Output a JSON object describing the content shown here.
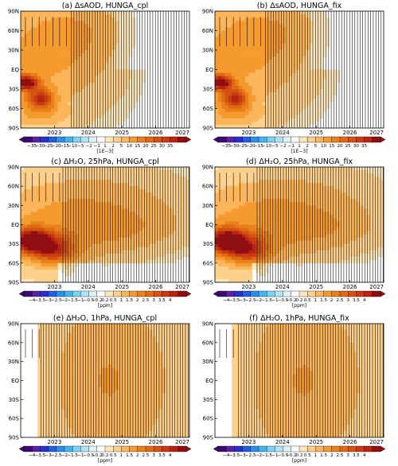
{
  "colors": {
    "levels": [
      "#3d0a73",
      "#5c1fa8",
      "#2a2fd0",
      "#1f5fe8",
      "#2b8fe6",
      "#46b4ec",
      "#80d1f0",
      "#b3e3f2",
      "#dff2f8",
      "#ffffff",
      "#fbe7bd",
      "#fdd08c",
      "#fbb55a",
      "#f59a2f",
      "#e9801a",
      "#e06a12",
      "#d2520f",
      "#c83a14",
      "#b8240f",
      "#8e0e12"
    ],
    "hatch": "#000000"
  },
  "colorbars": [
    {
      "ticks": [
        "−35",
        "−30",
        "−25",
        "−20",
        "−15",
        "−10",
        "−5",
        "−2",
        "−1",
        "1",
        "2",
        "5",
        "10",
        "15",
        "20",
        "25",
        "30",
        "35"
      ],
      "unit": "[1E−3]"
    },
    {
      "ticks": [
        "−4",
        "−3.5",
        "−3",
        "−2.5",
        "−2",
        "−1.5",
        "−1",
        "−0.5",
        "−0.2",
        "0.2",
        "0.5",
        "1",
        "1.5",
        "2",
        "2.5",
        "3",
        "3.5",
        "4"
      ],
      "unit": "[ppm]"
    }
  ],
  "chart_data": [
    {
      "type": "heatmap",
      "title": "(a) ΔsAOD, HUNGA_cpl",
      "variable": "sAOD anomaly",
      "scale": "1E−3",
      "x_ticks": [
        "2023",
        "2024",
        "2025",
        "2026",
        "2027"
      ],
      "y_ticks": [
        "90N",
        "60N",
        "30N",
        "EQ",
        "30S",
        "60S",
        "90S"
      ],
      "xlim": [
        2022.0,
        2027.0
      ],
      "ylim": [
        -90,
        90
      ],
      "maxima": [
        {
          "x": 2022.1,
          "y": -20,
          "value": 35
        },
        {
          "x": 2022.6,
          "y": -45,
          "value": 25
        }
      ],
      "hatching": "vertical lines over most of the domain, sparse in 2022 mid-latitudes"
    },
    {
      "type": "heatmap",
      "title": "(b) ΔsAOD, HUNGA_fix",
      "variable": "sAOD anomaly",
      "scale": "1E−3",
      "x_ticks": [
        "2023",
        "2024",
        "2025",
        "2026",
        "2027"
      ],
      "y_ticks": [
        "90N",
        "60N",
        "30N",
        "EQ",
        "30S",
        "60S",
        "90S"
      ],
      "xlim": [
        2022.0,
        2027.0
      ],
      "ylim": [
        -90,
        90
      ],
      "maxima": [
        {
          "x": 2022.1,
          "y": -20,
          "value": 35
        },
        {
          "x": 2022.6,
          "y": -45,
          "value": 25
        }
      ]
    },
    {
      "type": "heatmap",
      "title": "(c) ΔH₂O, 25hPa, HUNGA_cpl",
      "variable": "H2O anomaly at 25 hPa",
      "unit": "ppm",
      "x_ticks": [
        "2023",
        "2024",
        "2025",
        "2026",
        "2027"
      ],
      "y_ticks": [
        "90N",
        "60N",
        "30N",
        "EQ",
        "30S",
        "60S",
        "90S"
      ],
      "xlim": [
        2022.0,
        2027.0
      ],
      "ylim": [
        -90,
        90
      ],
      "maxima": [
        {
          "x": 2022.3,
          "y": -25,
          "value": 4
        }
      ]
    },
    {
      "type": "heatmap",
      "title": "(d) ΔH₂O, 25hPa, HUNGA_fix",
      "variable": "H2O anomaly at 25 hPa",
      "unit": "ppm",
      "x_ticks": [
        "2023",
        "2024",
        "2025",
        "2026",
        "2027"
      ],
      "y_ticks": [
        "90N",
        "60N",
        "30N",
        "EQ",
        "30S",
        "60S",
        "90S"
      ],
      "xlim": [
        2022.0,
        2027.0
      ],
      "ylim": [
        -90,
        90
      ],
      "maxima": [
        {
          "x": 2022.3,
          "y": -25,
          "value": 4
        }
      ]
    },
    {
      "type": "heatmap",
      "title": "(e) ΔH₂O, 1hPa, HUNGA_cpl",
      "variable": "H2O anomaly at 1 hPa",
      "unit": "ppm",
      "x_ticks": [
        "2023",
        "2024",
        "2025",
        "2026",
        "2027"
      ],
      "y_ticks": [
        "90N",
        "60N",
        "30N",
        "EQ",
        "30S",
        "60S",
        "90S"
      ],
      "xlim": [
        2022.0,
        2027.0
      ],
      "ylim": [
        -90,
        90
      ],
      "maxima": [
        {
          "x": 2023.3,
          "y": 20,
          "value": 2
        }
      ]
    },
    {
      "type": "heatmap",
      "title": "(f) ΔH₂O, 1hPa, HUNGA_fix",
      "variable": "H2O anomaly at 1 hPa",
      "unit": "ppm",
      "x_ticks": [
        "2023",
        "2024",
        "2025",
        "2026",
        "2027"
      ],
      "y_ticks": [
        "90N",
        "60N",
        "30N",
        "EQ",
        "30S",
        "60S",
        "90S"
      ],
      "xlim": [
        2022.0,
        2027.0
      ],
      "ylim": [
        -90,
        90
      ],
      "maxima": [
        {
          "x": 2023.8,
          "y": 0,
          "value": 1.5
        }
      ]
    }
  ]
}
